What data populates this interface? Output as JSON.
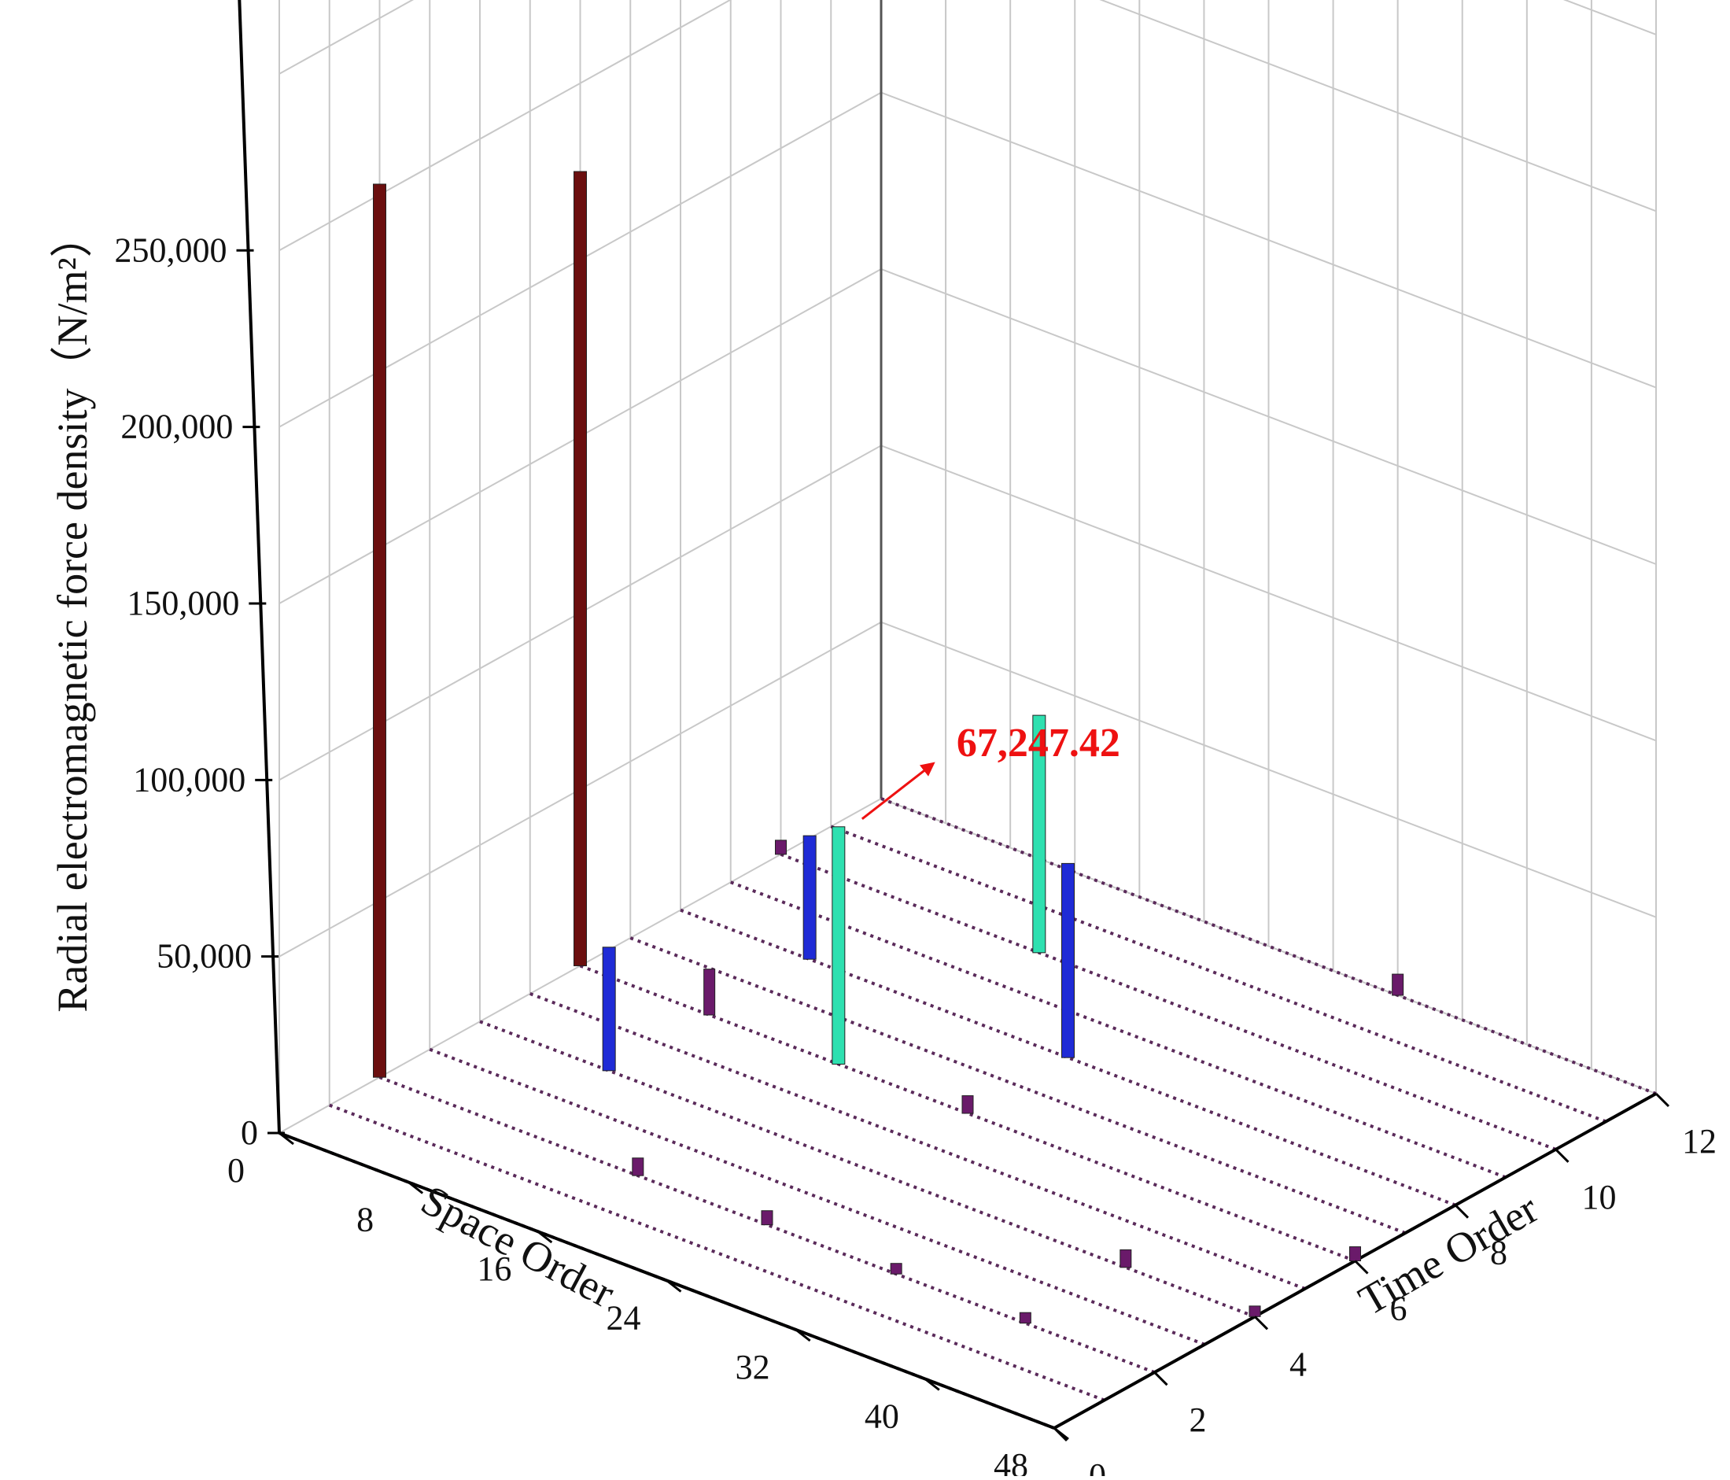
{
  "chart_data": {
    "type": "bar3d",
    "title": "",
    "xlabel": "Space Order",
    "ylabel": "Time Order",
    "zlabel": "Radial electromagnetic force density（N/m²）",
    "x_range": [
      0,
      48
    ],
    "y_range": [
      0,
      12
    ],
    "z_range": [
      0,
      250000
    ],
    "x_ticks": [
      "0",
      "8",
      "16",
      "24",
      "32",
      "40",
      "48"
    ],
    "y_ticks": [
      "0",
      "2",
      "4",
      "6",
      "8",
      "10",
      "12"
    ],
    "z_ticks": [
      "0",
      "50,000",
      "100,000",
      "150,000",
      "200,000",
      "250,000"
    ],
    "x_tick_values": [
      0,
      8,
      16,
      24,
      32,
      40,
      48
    ],
    "y_tick_values": [
      0,
      2,
      4,
      6,
      8,
      10,
      12
    ],
    "z_tick_values": [
      0,
      50000,
      100000,
      150000,
      200000,
      250000
    ],
    "grid": true,
    "bars": [
      {
        "x": 0,
        "y": 2,
        "z": 253000,
        "color": "#6b0f0f"
      },
      {
        "x": 0,
        "y": 6,
        "z": 225000,
        "color": "#6b0f0f"
      },
      {
        "x": 16,
        "y": 6,
        "z": 67247.42,
        "color": "#2ee0b0"
      },
      {
        "x": 16,
        "y": 10,
        "z": 67247.42,
        "color": "#2ee0b0"
      },
      {
        "x": 8,
        "y": 4,
        "z": 35000,
        "color": "#1f2bd6"
      },
      {
        "x": 8,
        "y": 8,
        "z": 35000,
        "color": "#1f2bd6"
      },
      {
        "x": 24,
        "y": 8,
        "z": 55000,
        "color": "#1f2bd6"
      },
      {
        "x": 8,
        "y": 6,
        "z": 13000,
        "color": "#6a1a6a"
      },
      {
        "x": 16,
        "y": 2,
        "z": 5000,
        "color": "#6a1a6a"
      },
      {
        "x": 24,
        "y": 2,
        "z": 4000,
        "color": "#6a1a6a"
      },
      {
        "x": 32,
        "y": 2,
        "z": 3000,
        "color": "#6a1a6a"
      },
      {
        "x": 40,
        "y": 2,
        "z": 3000,
        "color": "#6a1a6a"
      },
      {
        "x": 40,
        "y": 4,
        "z": 5000,
        "color": "#6a1a6a"
      },
      {
        "x": 24,
        "y": 6,
        "z": 5000,
        "color": "#6a1a6a"
      },
      {
        "x": 48,
        "y": 4,
        "z": 3000,
        "color": "#6a1a6a"
      },
      {
        "x": 48,
        "y": 6,
        "z": 4000,
        "color": "#6a1a6a"
      },
      {
        "x": 32,
        "y": 12,
        "z": 6000,
        "color": "#6a1a6a"
      },
      {
        "x": 0,
        "y": 10,
        "z": 4000,
        "color": "#6a1a6a"
      }
    ],
    "annotation": {
      "text": "67,247.42",
      "color": "#ee1111",
      "target_bar": 2
    }
  }
}
